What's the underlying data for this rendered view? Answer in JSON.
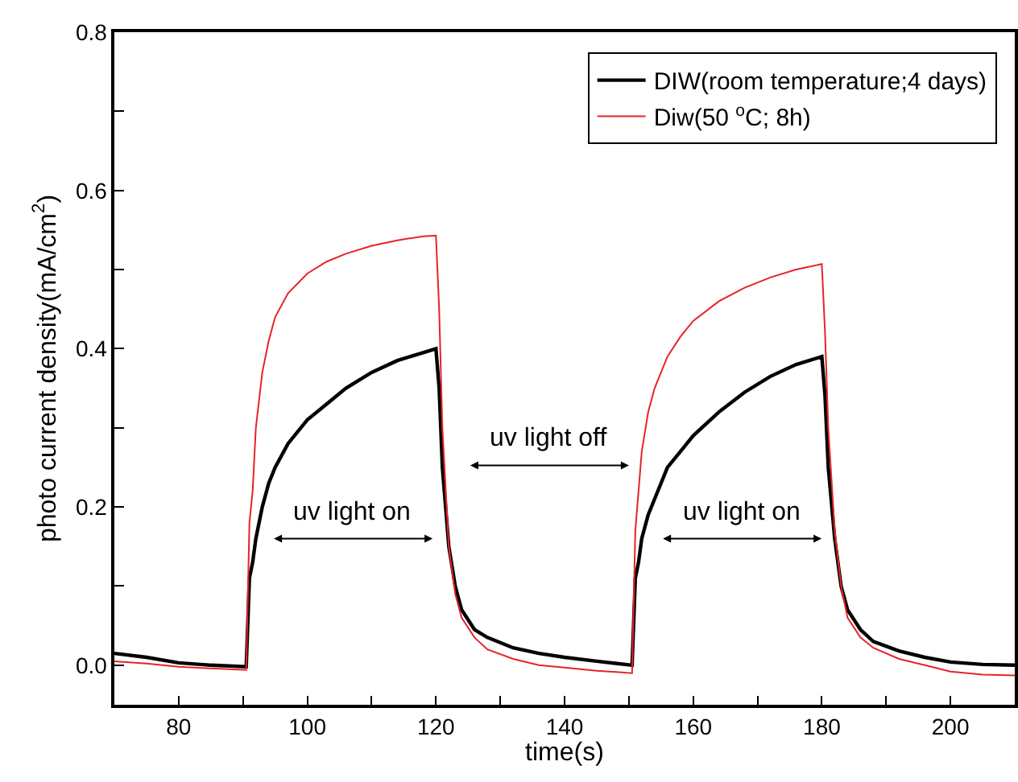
{
  "chart_data": {
    "type": "line",
    "xlabel": "time(s)",
    "ylabel": "photo current density(mA/cm$^{2}$)",
    "xlim": [
      70,
      210
    ],
    "ylim": [
      -0.05,
      0.8
    ],
    "xticks": [
      80,
      {
        "value": 90,
        "label": null
      },
      100,
      {
        "value": 110,
        "label": null
      },
      120,
      {
        "value": 130,
        "label": null
      },
      140,
      {
        "value": 150,
        "label": null
      },
      160,
      {
        "value": 170,
        "label": null
      },
      180,
      {
        "value": 190,
        "label": null
      },
      200
    ],
    "yticks": [
      {
        "value": 0,
        "label": "0.0"
      },
      {
        "value": 0.1,
        "label": null
      },
      0.2,
      {
        "value": 0.3,
        "label": null
      },
      0.4,
      {
        "value": 0.5,
        "label": null
      },
      0.6,
      {
        "value": 0.7,
        "label": null
      },
      0.8
    ],
    "grid": false,
    "legend": "top right",
    "marker": "none",
    "line_style": "solid",
    "annotations": [
      "uv light on",
      "uv light off",
      "uv light on"
    ],
    "x": [
      70,
      75,
      80,
      85,
      90.5,
      91,
      91.5,
      92,
      93,
      94,
      95,
      97,
      100,
      103,
      106,
      110,
      114,
      118,
      120,
      120.5,
      121,
      122,
      123,
      124,
      126,
      128,
      132,
      136,
      140,
      145,
      150.5,
      151,
      151.5,
      152,
      153,
      154,
      156,
      158,
      160,
      164,
      168,
      172,
      176,
      180,
      180.5,
      181,
      182,
      183,
      184,
      186,
      188,
      192,
      196,
      200,
      205,
      210
    ],
    "series": [
      {
        "name": "DIW(room temperature;4 days)",
        "color": "#000000",
        "values": [
          0.015,
          0.01,
          0.003,
          0.0,
          -0.002,
          0.11,
          0.13,
          0.16,
          0.2,
          0.23,
          0.25,
          0.28,
          0.31,
          0.33,
          0.35,
          0.37,
          0.385,
          0.395,
          0.4,
          0.35,
          0.25,
          0.15,
          0.1,
          0.07,
          0.045,
          0.035,
          0.022,
          0.015,
          0.01,
          0.005,
          0.0,
          0.11,
          0.13,
          0.16,
          0.19,
          0.21,
          0.25,
          0.27,
          0.29,
          0.32,
          0.345,
          0.365,
          0.38,
          0.39,
          0.34,
          0.25,
          0.16,
          0.1,
          0.07,
          0.045,
          0.03,
          0.018,
          0.01,
          0.004,
          0.001,
          0.0
        ]
      },
      {
        "name": "Diw(50 $^{o}$C; 8h)",
        "color": "#e8222a",
        "values": [
          0.005,
          0.002,
          -0.002,
          -0.004,
          -0.006,
          0.18,
          0.22,
          0.3,
          0.37,
          0.41,
          0.44,
          0.47,
          0.495,
          0.51,
          0.52,
          0.53,
          0.537,
          0.542,
          0.543,
          0.45,
          0.3,
          0.15,
          0.09,
          0.06,
          0.035,
          0.02,
          0.008,
          0.0,
          -0.003,
          -0.007,
          -0.01,
          0.17,
          0.22,
          0.27,
          0.32,
          0.35,
          0.39,
          0.415,
          0.435,
          0.46,
          0.477,
          0.49,
          0.5,
          0.507,
          0.42,
          0.3,
          0.17,
          0.1,
          0.06,
          0.035,
          0.022,
          0.008,
          0.0,
          -0.008,
          -0.012,
          -0.013
        ]
      }
    ]
  }
}
